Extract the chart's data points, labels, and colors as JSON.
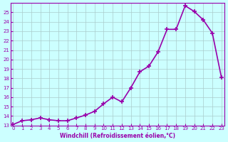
{
  "x": [
    0,
    1,
    2,
    3,
    4,
    5,
    6,
    7,
    8,
    9,
    10,
    11,
    12,
    13,
    14,
    15,
    16,
    17,
    18,
    19,
    20,
    21,
    22,
    23
  ],
  "y": [
    13.1,
    13.5,
    13.6,
    13.8,
    13.6,
    13.5,
    13.5,
    13.8,
    14.1,
    14.5,
    15.3,
    16.0,
    15.5,
    17.0,
    18.7,
    19.3,
    20.8,
    23.2,
    23.2,
    25.7,
    25.1,
    24.2,
    22.8,
    18.1
  ],
  "line_color": "#9900aa",
  "bg_color": "#ccffff",
  "grid_color": "#aacccc",
  "axis_color": "#9900aa",
  "tick_label_color": "#9900aa",
  "xlabel": "Windchill (Refroidissement éolien,°C)",
  "ylim": [
    13,
    26
  ],
  "xlim_min": -0.3,
  "xlim_max": 23.3,
  "yticks": [
    13,
    14,
    15,
    16,
    17,
    18,
    19,
    20,
    21,
    22,
    23,
    24,
    25
  ],
  "xticks": [
    0,
    1,
    2,
    3,
    4,
    5,
    6,
    7,
    8,
    9,
    10,
    11,
    12,
    13,
    14,
    15,
    16,
    17,
    18,
    19,
    20,
    21,
    22,
    23
  ],
  "marker": "+",
  "marker_size": 5,
  "marker_edge_width": 1.2,
  "line_width": 1.2
}
